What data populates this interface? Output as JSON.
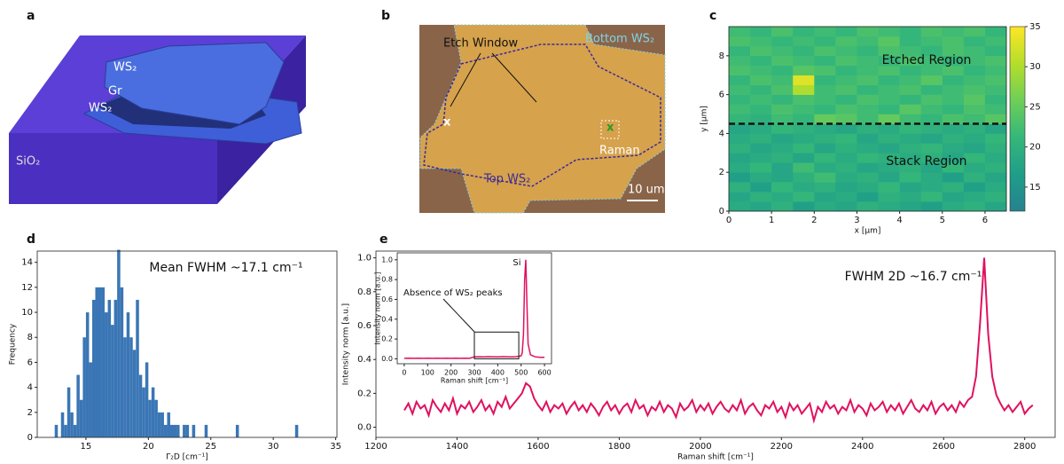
{
  "panel_labels": [
    "a",
    "b",
    "c",
    "d",
    "e"
  ],
  "illustration": {
    "labels": [
      "WS₂",
      "Gr",
      "WS₂",
      "SiO₂"
    ]
  },
  "micrograph": {
    "labels": [
      "Etch Window",
      "Bottom WS₂",
      "x",
      "x",
      "Raman",
      "Top WS₂",
      "10 um"
    ]
  },
  "chart_data": [
    {
      "type": "heatmap",
      "xlabel": "x [μm]",
      "ylabel": "y [μm]",
      "xlim": [
        0,
        6.5
      ],
      "ylim": [
        0,
        9.5
      ],
      "xticks": [
        0,
        1,
        2,
        3,
        4,
        5,
        6
      ],
      "yticks": [
        0,
        2,
        4,
        6,
        8
      ],
      "z": [
        [
          19,
          18,
          20,
          17,
          19,
          18,
          20,
          19,
          18,
          17,
          19,
          20,
          18
        ],
        [
          18,
          20,
          19,
          21,
          18,
          19,
          17,
          20,
          19,
          21,
          18,
          19,
          20
        ],
        [
          20,
          17,
          21,
          19,
          20,
          18,
          19,
          21,
          18,
          19,
          20,
          17,
          19
        ],
        [
          17,
          19,
          18,
          20,
          22,
          19,
          20,
          18,
          21,
          19,
          17,
          20,
          18
        ],
        [
          19,
          21,
          18,
          22,
          19,
          20,
          18,
          19,
          20,
          18,
          21,
          19,
          20
        ],
        [
          18,
          19,
          20,
          18,
          21,
          19,
          21,
          20,
          19,
          20,
          18,
          21,
          19
        ],
        [
          20,
          18,
          19,
          21,
          18,
          20,
          19,
          18,
          20,
          21,
          19,
          18,
          20
        ],
        [
          19,
          20,
          18,
          19,
          20,
          21,
          18,
          20,
          19,
          18,
          20,
          19,
          21
        ],
        [
          18,
          19,
          21,
          20,
          19,
          18,
          20,
          19,
          21,
          20,
          19,
          20,
          18
        ],
        [
          21,
          20,
          22,
          21,
          25,
          24,
          22,
          25,
          22,
          21,
          23,
          22,
          24
        ],
        [
          22,
          21,
          23,
          22,
          21,
          23,
          22,
          21,
          24,
          22,
          21,
          23,
          22
        ],
        [
          21,
          22,
          21,
          23,
          22,
          21,
          23,
          22,
          21,
          23,
          22,
          24,
          21
        ],
        [
          22,
          21,
          23,
          30,
          22,
          23,
          21,
          22,
          23,
          21,
          22,
          23,
          22
        ],
        [
          21,
          23,
          22,
          33,
          21,
          22,
          23,
          21,
          22,
          24,
          21,
          22,
          23
        ],
        [
          23,
          22,
          21,
          24,
          23,
          21,
          22,
          23,
          21,
          22,
          23,
          21,
          22
        ],
        [
          22,
          21,
          23,
          22,
          21,
          23,
          22,
          21,
          23,
          22,
          21,
          22,
          23
        ],
        [
          21,
          23,
          22,
          21,
          23,
          22,
          21,
          23,
          22,
          21,
          23,
          22,
          21
        ],
        [
          23,
          22,
          21,
          22,
          21,
          23,
          22,
          24,
          21,
          22,
          23,
          21,
          22
        ],
        [
          22,
          21,
          23,
          21,
          22,
          21,
          23,
          22,
          21,
          23,
          22,
          23,
          21
        ]
      ],
      "clim": [
        12,
        35
      ],
      "cticks": [
        15,
        20,
        25,
        30,
        35
      ],
      "colormap": "viridis",
      "hline": 4.5,
      "annotations": [
        "Etched Region",
        "Stack Region"
      ]
    },
    {
      "type": "histogram",
      "xlabel": "Γ₂D [cm⁻¹]",
      "ylabel": "Frequency",
      "color": "#3a76b5",
      "xlim": [
        11.1,
        35.1
      ],
      "xticks": [
        15,
        20,
        25,
        30,
        35
      ],
      "ylim": [
        0,
        14.9
      ],
      "yticks": [
        0,
        2,
        4,
        6,
        8,
        10,
        12,
        14
      ],
      "bins": [
        12.5,
        12.75,
        13,
        13.25,
        13.5,
        13.75,
        14,
        14.25,
        14.5,
        14.75,
        15,
        15.25,
        15.5,
        15.75,
        16,
        16.25,
        16.5,
        16.75,
        17,
        17.25,
        17.5,
        17.75,
        18,
        18.25,
        18.5,
        18.75,
        19,
        19.25,
        19.5,
        19.75,
        20,
        20.25,
        20.5,
        20.75,
        21,
        21.25,
        21.5,
        21.75,
        22,
        22.25,
        22.5,
        22.75,
        23,
        23.25,
        23.5,
        23.75,
        24,
        24.25,
        24.5,
        24.75,
        25,
        25.25,
        25.5,
        25.75,
        26,
        26.25,
        26.5,
        26.75,
        27,
        27.25,
        27.5,
        27.75,
        28,
        28.25,
        28.5,
        28.75,
        29,
        29.25,
        29.5,
        29.75,
        30,
        30.25,
        30.5,
        30.75,
        31,
        31.25,
        31.5,
        31.75,
        32
      ],
      "counts": [
        1,
        0,
        2,
        1,
        4,
        2,
        1,
        5,
        3,
        8,
        10,
        6,
        11,
        12,
        12,
        12,
        10,
        11,
        9,
        11,
        15,
        12,
        8,
        10,
        8,
        7,
        11,
        5,
        4,
        6,
        3,
        4,
        3,
        2,
        2,
        1,
        2,
        1,
        1,
        1,
        0,
        1,
        1,
        0,
        1,
        0,
        0,
        0,
        1,
        0,
        0,
        0,
        0,
        0,
        0,
        0,
        0,
        0,
        1,
        0,
        0,
        0,
        0,
        0,
        0,
        0,
        0,
        0,
        0,
        0,
        0,
        0,
        0,
        0,
        0,
        0,
        0,
        1
      ],
      "annotations": [
        "Mean FWHM ~17.1 cm⁻¹"
      ]
    },
    {
      "type": "line",
      "xlabel": "Raman shift [cm⁻¹]",
      "ylabel": "Intensity norm [a.u.]",
      "color": "#e0115f",
      "xlim": [
        1200,
        2875
      ],
      "xticks": [
        1200,
        1400,
        1600,
        1800,
        2000,
        2200,
        2400,
        2600,
        2800
      ],
      "ylim": [
        -0.06,
        1.04
      ],
      "yticks": [
        {
          "value": 0,
          "label": "0.0"
        },
        0.2,
        0.4,
        0.6,
        0.8,
        {
          "value": 1,
          "label": "1.0"
        }
      ],
      "x": [
        1270,
        1280,
        1290,
        1300,
        1310,
        1320,
        1330,
        1340,
        1350,
        1360,
        1370,
        1380,
        1390,
        1400,
        1410,
        1420,
        1430,
        1440,
        1450,
        1460,
        1470,
        1480,
        1490,
        1500,
        1510,
        1520,
        1530,
        1540,
        1550,
        1560,
        1570,
        1580,
        1590,
        1600,
        1610,
        1620,
        1630,
        1640,
        1650,
        1660,
        1670,
        1680,
        1690,
        1700,
        1710,
        1720,
        1730,
        1740,
        1750,
        1760,
        1770,
        1780,
        1790,
        1800,
        1810,
        1820,
        1830,
        1840,
        1850,
        1860,
        1870,
        1880,
        1890,
        1900,
        1910,
        1920,
        1930,
        1940,
        1950,
        1960,
        1970,
        1980,
        1990,
        2000,
        2010,
        2020,
        2030,
        2040,
        2050,
        2060,
        2070,
        2080,
        2090,
        2100,
        2110,
        2120,
        2130,
        2140,
        2150,
        2160,
        2170,
        2180,
        2190,
        2200,
        2210,
        2220,
        2230,
        2240,
        2250,
        2260,
        2270,
        2280,
        2290,
        2300,
        2310,
        2320,
        2330,
        2340,
        2350,
        2360,
        2370,
        2380,
        2390,
        2400,
        2410,
        2420,
        2430,
        2440,
        2450,
        2460,
        2470,
        2480,
        2490,
        2500,
        2510,
        2520,
        2530,
        2540,
        2550,
        2560,
        2570,
        2580,
        2590,
        2600,
        2610,
        2620,
        2630,
        2640,
        2650,
        2660,
        2670,
        2680,
        2690,
        2700,
        2710,
        2720,
        2730,
        2740,
        2750,
        2760,
        2770,
        2780,
        2790,
        2800,
        2810,
        2820
      ],
      "values": [
        0.1,
        0.14,
        0.08,
        0.15,
        0.11,
        0.13,
        0.07,
        0.16,
        0.12,
        0.09,
        0.14,
        0.1,
        0.17,
        0.08,
        0.13,
        0.11,
        0.15,
        0.09,
        0.12,
        0.16,
        0.1,
        0.13,
        0.08,
        0.15,
        0.12,
        0.18,
        0.11,
        0.14,
        0.17,
        0.2,
        0.26,
        0.24,
        0.17,
        0.13,
        0.1,
        0.15,
        0.09,
        0.13,
        0.11,
        0.14,
        0.08,
        0.12,
        0.15,
        0.1,
        0.13,
        0.09,
        0.14,
        0.11,
        0.07,
        0.12,
        0.15,
        0.1,
        0.13,
        0.08,
        0.12,
        0.14,
        0.09,
        0.16,
        0.11,
        0.13,
        0.07,
        0.12,
        0.1,
        0.15,
        0.09,
        0.13,
        0.11,
        0.06,
        0.14,
        0.1,
        0.12,
        0.16,
        0.09,
        0.13,
        0.1,
        0.14,
        0.08,
        0.12,
        0.15,
        0.11,
        0.09,
        0.13,
        0.1,
        0.16,
        0.08,
        0.12,
        0.14,
        0.1,
        0.07,
        0.13,
        0.11,
        0.15,
        0.09,
        0.12,
        0.06,
        0.14,
        0.1,
        0.13,
        0.08,
        0.11,
        0.14,
        0.04,
        0.12,
        0.09,
        0.15,
        0.11,
        0.13,
        0.08,
        0.12,
        0.1,
        0.16,
        0.09,
        0.13,
        0.11,
        0.07,
        0.14,
        0.1,
        0.12,
        0.15,
        0.09,
        0.13,
        0.1,
        0.14,
        0.08,
        0.12,
        0.16,
        0.11,
        0.09,
        0.13,
        0.1,
        0.15,
        0.08,
        0.12,
        0.14,
        0.1,
        0.13,
        0.09,
        0.15,
        0.12,
        0.16,
        0.18,
        0.3,
        0.62,
        1.0,
        0.55,
        0.3,
        0.19,
        0.14,
        0.1,
        0.13,
        0.09,
        0.12,
        0.15,
        0.08,
        0.11,
        0.13
      ],
      "annotations": [
        "FWHM 2D ~16.7 cm⁻¹"
      ]
    },
    {
      "type": "line",
      "xlabel": "Raman shift [cm⁻¹]",
      "ylabel": "Intensity norm [a.u.]",
      "color": "#e0115f",
      "xlim": [
        -30,
        630
      ],
      "xticks": [
        0,
        100,
        200,
        300,
        400,
        500,
        600
      ],
      "ylim": [
        -0.05,
        1.07
      ],
      "yticks": [
        {
          "value": 0,
          "label": "0.0"
        },
        0.2,
        0.4,
        0.6,
        0.8,
        {
          "value": 1,
          "label": "1.0"
        }
      ],
      "x": [
        0,
        20,
        40,
        60,
        80,
        100,
        120,
        140,
        160,
        180,
        200,
        220,
        240,
        260,
        280,
        300,
        320,
        340,
        360,
        380,
        400,
        420,
        440,
        460,
        480,
        500,
        505,
        510,
        515,
        520,
        525,
        530,
        540,
        560,
        580,
        600
      ],
      "values": [
        0.005,
        0.006,
        0.005,
        0.006,
        0.005,
        0.006,
        0.005,
        0.006,
        0.005,
        0.006,
        0.005,
        0.006,
        0.005,
        0.006,
        0.005,
        0.02,
        0.021,
        0.02,
        0.022,
        0.021,
        0.02,
        0.022,
        0.021,
        0.02,
        0.022,
        0.03,
        0.06,
        0.25,
        0.8,
        1.0,
        0.55,
        0.15,
        0.04,
        0.02,
        0.015,
        0.015
      ],
      "annotations": [
        "Si",
        "Absence of WS₂ peaks"
      ]
    }
  ]
}
